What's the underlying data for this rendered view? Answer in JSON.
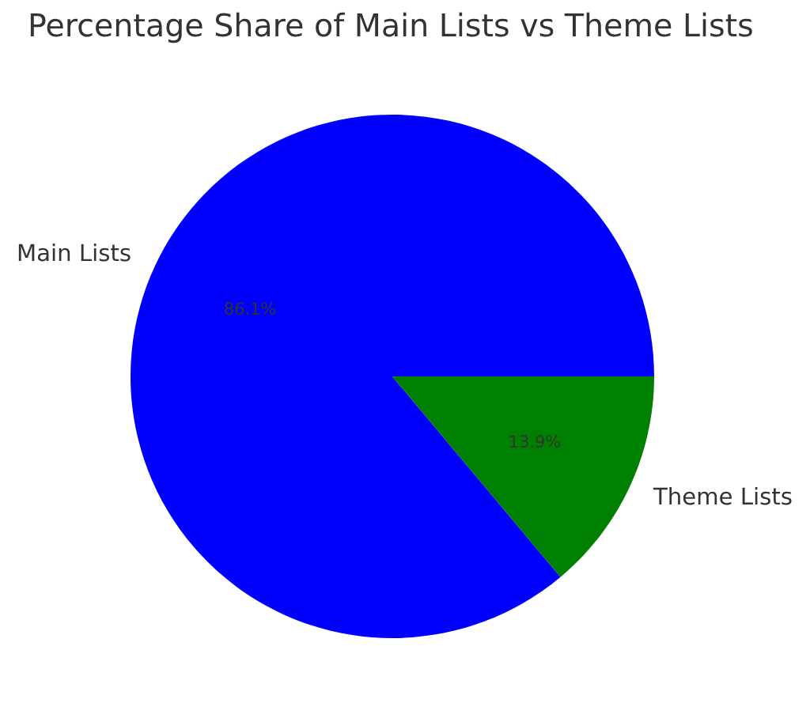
{
  "chart_data": {
    "type": "pie",
    "title": "Percentage Share of Main Lists vs Theme Lists",
    "categories": [
      "Main Lists",
      "Theme Lists"
    ],
    "values": [
      86.1,
      13.9
    ],
    "colors": [
      "#0000ff",
      "#008000"
    ],
    "value_labels": [
      "86.1%",
      "13.9%"
    ]
  }
}
